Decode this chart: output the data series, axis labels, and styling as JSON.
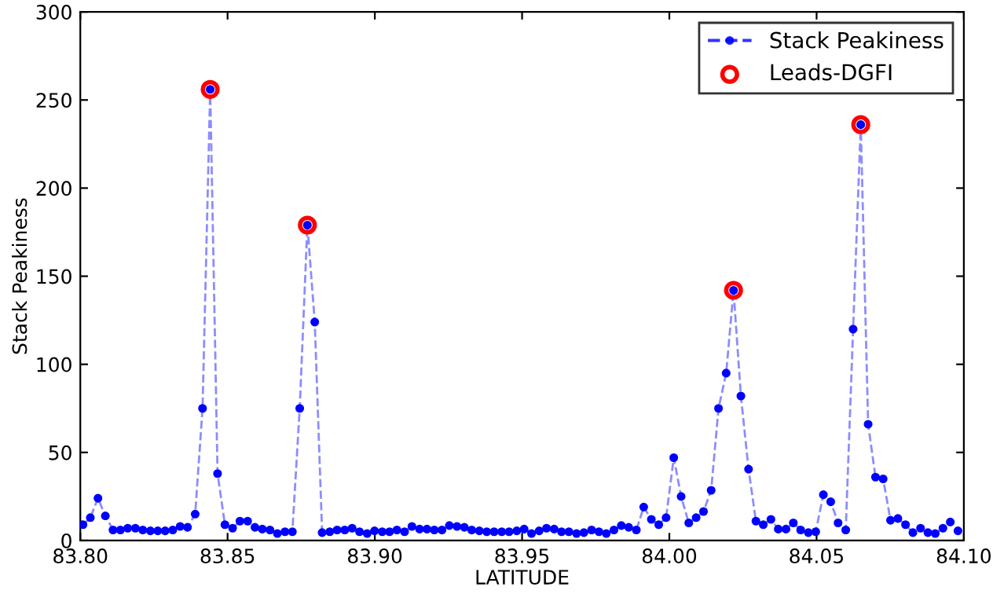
{
  "chart_data": {
    "type": "line",
    "xlabel": "LATITUDE",
    "ylabel": "Stack Peakiness",
    "xlim": [
      83.8,
      84.1
    ],
    "ylim": [
      0,
      300
    ],
    "xticks": [
      {
        "value": 83.8,
        "label": "83.80"
      },
      {
        "value": 83.85,
        "label": "83.85"
      },
      {
        "value": 83.9,
        "label": "83.90"
      },
      {
        "value": 83.95,
        "label": "83.95"
      },
      {
        "value": 84.0,
        "label": "84.00"
      },
      {
        "value": 84.05,
        "label": "84.05"
      },
      {
        "value": 84.1,
        "label": "84.10"
      }
    ],
    "yticks": [
      0,
      50,
      100,
      150,
      200,
      250,
      300
    ],
    "grid": false,
    "legend": "top right",
    "series": [
      {
        "name": "Stack Peakiness",
        "color": "#0000ff",
        "marker": "circle",
        "line_style": "dashed",
        "x": [
          83.8009,
          83.8034,
          83.806,
          83.8085,
          83.8111,
          83.8136,
          83.8161,
          83.8187,
          83.8212,
          83.8238,
          83.8263,
          83.8288,
          83.8314,
          83.8339,
          83.8364,
          83.839,
          83.8415,
          83.8441,
          83.8466,
          83.8491,
          83.8517,
          83.8542,
          83.8568,
          83.8593,
          83.8618,
          83.8644,
          83.8669,
          83.8695,
          83.872,
          83.8745,
          83.8771,
          83.8796,
          83.8821,
          83.8847,
          83.8872,
          83.8898,
          83.8923,
          83.8948,
          83.8974,
          83.8999,
          83.9025,
          83.905,
          83.9075,
          83.9101,
          83.9126,
          83.9152,
          83.9177,
          83.9202,
          83.9228,
          83.9253,
          83.9279,
          83.9304,
          83.9329,
          83.9355,
          83.938,
          83.9405,
          83.9431,
          83.9456,
          83.9482,
          83.9507,
          83.9532,
          83.9558,
          83.9583,
          83.9609,
          83.9634,
          83.9659,
          83.9685,
          83.971,
          83.9736,
          83.9761,
          83.9786,
          83.9812,
          83.9837,
          83.9862,
          83.9888,
          83.9913,
          83.9939,
          83.9964,
          83.9989,
          84.0015,
          84.004,
          84.0066,
          84.0091,
          84.0116,
          84.0142,
          84.0167,
          84.0193,
          84.0218,
          84.0243,
          84.0269,
          84.0294,
          84.0319,
          84.0345,
          84.037,
          84.0396,
          84.0421,
          84.0446,
          84.0472,
          84.0497,
          84.0523,
          84.0548,
          84.0573,
          84.0599,
          84.0624,
          84.065,
          84.0675,
          84.07,
          84.0726,
          84.0751,
          84.0776,
          84.0802,
          84.0827,
          84.0853,
          84.0878,
          84.0903,
          84.0929,
          84.0954,
          84.098
        ],
        "values": [
          9,
          13,
          24,
          14,
          6,
          6,
          7,
          7,
          6,
          5.5,
          5.5,
          5.5,
          6,
          8,
          7.5,
          15,
          75,
          256,
          38,
          9,
          7,
          11,
          11,
          7.5,
          6.5,
          6,
          4,
          5,
          5,
          75,
          179,
          124,
          4.5,
          5,
          6,
          6,
          7,
          5,
          4,
          5.5,
          5,
          5,
          6,
          5,
          8,
          6.5,
          6.5,
          6,
          6,
          8.5,
          8,
          7.5,
          6,
          5.5,
          5,
          5,
          5,
          5,
          5.5,
          6.5,
          4,
          5.5,
          7,
          6.5,
          5,
          5,
          4,
          4.5,
          6,
          5,
          4,
          6,
          8.5,
          7.5,
          6,
          19,
          12,
          9,
          13,
          47,
          25,
          10,
          13,
          16.5,
          28.5,
          75,
          95,
          142,
          82,
          40.5,
          11,
          9,
          12,
          6.5,
          6.5,
          10,
          6,
          4.5,
          5,
          26,
          22,
          10,
          6,
          120,
          236,
          66,
          36,
          35,
          11.5,
          12.5,
          9,
          4.5,
          7,
          4.5,
          4,
          7,
          10.5,
          5.5
        ]
      },
      {
        "name": "Leads-DGFI",
        "type": "scatter",
        "color": "#ff0000",
        "marker": "circle",
        "x": [
          83.8441,
          83.8771,
          84.0218,
          84.065
        ],
        "values": [
          256,
          179,
          142,
          236
        ]
      }
    ]
  }
}
